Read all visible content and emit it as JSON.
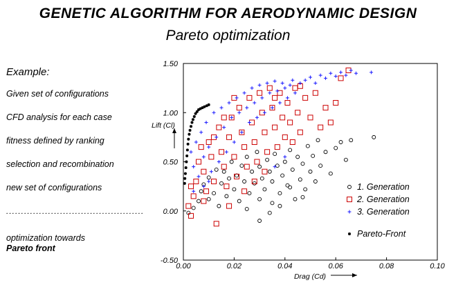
{
  "header": {
    "title": "GENETIC ALGORITHM FOR AERODYNAMIC DESIGN",
    "subtitle": "Pareto optimization"
  },
  "sidebar": {
    "example": "Example:",
    "steps": [
      "Given set of configurations",
      "CFD analysis for each case",
      "fitness defined by ranking",
      "selection and recombination",
      "new set of configurations"
    ],
    "separator": "..............................................",
    "optimization_line1": "optimization towards",
    "optimization_line2": "Pareto front"
  },
  "chart_data": {
    "type": "scatter",
    "xlabel": "Drag (Cd)",
    "ylabel": "Lift (Cl)",
    "xlim": [
      0.0,
      0.1
    ],
    "ylim": [
      -0.5,
      1.5
    ],
    "x_ticks": [
      "0.00",
      "0.02",
      "0.04",
      "0.06",
      "0.08",
      "0.10"
    ],
    "y_ticks": [
      "1.50",
      "1.00",
      "0.50",
      "0.00",
      "-0.50"
    ],
    "series": [
      {
        "name": "1. Generation",
        "marker": "circle",
        "color": "#000000",
        "points": [
          [
            0.002,
            -0.02
          ],
          [
            0.004,
            0.03
          ],
          [
            0.006,
            0.1
          ],
          [
            0.007,
            0.2
          ],
          [
            0.008,
            0.27
          ],
          [
            0.01,
            0.12
          ],
          [
            0.01,
            0.34
          ],
          [
            0.012,
            0.18
          ],
          [
            0.013,
            0.42
          ],
          [
            0.014,
            0.05
          ],
          [
            0.015,
            0.28
          ],
          [
            0.016,
            0.4
          ],
          [
            0.017,
            0.15
          ],
          [
            0.018,
            0.33
          ],
          [
            0.019,
            0.5
          ],
          [
            0.02,
            0.22
          ],
          [
            0.021,
            0.36
          ],
          [
            0.022,
            0.1
          ],
          [
            0.023,
            0.46
          ],
          [
            0.024,
            0.3
          ],
          [
            0.025,
            0.02
          ],
          [
            0.025,
            0.55
          ],
          [
            0.026,
            0.18
          ],
          [
            0.027,
            0.4
          ],
          [
            0.028,
            0.28
          ],
          [
            0.029,
            0.6
          ],
          [
            0.03,
            0.12
          ],
          [
            0.03,
            0.45
          ],
          [
            0.031,
            0.33
          ],
          [
            0.032,
            0.22
          ],
          [
            0.033,
            0.52
          ],
          [
            0.034,
            0.4
          ],
          [
            0.035,
            0.08
          ],
          [
            0.035,
            0.3
          ],
          [
            0.036,
            0.58
          ],
          [
            0.037,
            0.46
          ],
          [
            0.038,
            0.18
          ],
          [
            0.039,
            0.36
          ],
          [
            0.04,
            0.5
          ],
          [
            0.041,
            0.26
          ],
          [
            0.042,
            0.62
          ],
          [
            0.043,
            0.42
          ],
          [
            0.044,
            0.12
          ],
          [
            0.045,
            0.55
          ],
          [
            0.046,
            0.32
          ],
          [
            0.047,
            0.48
          ],
          [
            0.048,
            0.22
          ],
          [
            0.049,
            0.66
          ],
          [
            0.05,
            0.4
          ],
          [
            0.051,
            0.56
          ],
          [
            0.052,
            0.3
          ],
          [
            0.053,
            0.72
          ],
          [
            0.054,
            0.46
          ],
          [
            0.056,
            0.6
          ],
          [
            0.058,
            0.38
          ],
          [
            0.06,
            0.64
          ],
          [
            0.062,
            0.7
          ],
          [
            0.064,
            0.52
          ],
          [
            0.066,
            0.72
          ],
          [
            0.075,
            0.75
          ],
          [
            0.03,
            -0.1
          ],
          [
            0.034,
            -0.02
          ],
          [
            0.038,
            0.05
          ],
          [
            0.042,
            0.24
          ],
          [
            0.047,
            0.14
          ]
        ]
      },
      {
        "name": "2. Generation",
        "marker": "square",
        "color": "#cc0000",
        "points": [
          [
            0.002,
            0.05
          ],
          [
            0.003,
            -0.05
          ],
          [
            0.004,
            0.15
          ],
          [
            0.005,
            0.3
          ],
          [
            0.006,
            0.5
          ],
          [
            0.007,
            0.65
          ],
          [
            0.008,
            0.4
          ],
          [
            0.009,
            0.2
          ],
          [
            0.01,
            0.7
          ],
          [
            0.011,
            0.55
          ],
          [
            0.012,
            0.3
          ],
          [
            0.013,
            -0.13
          ],
          [
            0.014,
            0.85
          ],
          [
            0.015,
            0.6
          ],
          [
            0.016,
            0.45
          ],
          [
            0.017,
            0.25
          ],
          [
            0.018,
            0.75
          ],
          [
            0.019,
            0.95
          ],
          [
            0.02,
            0.55
          ],
          [
            0.021,
            0.35
          ],
          [
            0.022,
            1.05
          ],
          [
            0.023,
            0.8
          ],
          [
            0.024,
            0.65
          ],
          [
            0.025,
            0.45
          ],
          [
            0.026,
            1.15
          ],
          [
            0.027,
            0.9
          ],
          [
            0.028,
            0.7
          ],
          [
            0.029,
            0.5
          ],
          [
            0.03,
            1.2
          ],
          [
            0.031,
            1.0
          ],
          [
            0.032,
            0.8
          ],
          [
            0.033,
            0.6
          ],
          [
            0.034,
            1.25
          ],
          [
            0.035,
            1.05
          ],
          [
            0.036,
            0.85
          ],
          [
            0.037,
            0.65
          ],
          [
            0.038,
            1.2
          ],
          [
            0.039,
            0.95
          ],
          [
            0.04,
            0.75
          ],
          [
            0.041,
            1.1
          ],
          [
            0.042,
            0.9
          ],
          [
            0.043,
            0.7
          ],
          [
            0.044,
            1.25
          ],
          [
            0.045,
            1.0
          ],
          [
            0.046,
            0.8
          ],
          [
            0.048,
            1.15
          ],
          [
            0.05,
            0.95
          ],
          [
            0.052,
            1.2
          ],
          [
            0.054,
            0.85
          ],
          [
            0.056,
            1.05
          ],
          [
            0.058,
            0.9
          ],
          [
            0.06,
            1.1
          ],
          [
            0.062,
            1.35
          ],
          [
            0.065,
            1.43
          ],
          [
            0.003,
            0.25
          ],
          [
            0.008,
            0.1
          ],
          [
            0.012,
            0.75
          ],
          [
            0.016,
            0.95
          ],
          [
            0.02,
            1.15
          ],
          [
            0.028,
            0.3
          ],
          [
            0.032,
            0.4
          ],
          [
            0.018,
            0.05
          ],
          [
            0.024,
            0.2
          ],
          [
            0.036,
            1.15
          ],
          [
            0.046,
            1.27
          ]
        ]
      },
      {
        "name": "3. Generation",
        "marker": "plus",
        "color": "#1a1aff",
        "points": [
          [
            0.003,
            0.6
          ],
          [
            0.004,
            0.45
          ],
          [
            0.005,
            0.7
          ],
          [
            0.006,
            0.35
          ],
          [
            0.007,
            0.8
          ],
          [
            0.008,
            0.55
          ],
          [
            0.009,
            0.9
          ],
          [
            0.01,
            0.65
          ],
          [
            0.011,
            0.4
          ],
          [
            0.012,
            1.0
          ],
          [
            0.013,
            0.75
          ],
          [
            0.014,
            0.5
          ],
          [
            0.015,
            1.05
          ],
          [
            0.016,
            0.85
          ],
          [
            0.017,
            0.6
          ],
          [
            0.018,
            1.1
          ],
          [
            0.019,
            0.95
          ],
          [
            0.02,
            0.7
          ],
          [
            0.021,
            1.15
          ],
          [
            0.022,
            1.0
          ],
          [
            0.023,
            0.8
          ],
          [
            0.024,
            1.2
          ],
          [
            0.025,
            1.05
          ],
          [
            0.026,
            0.9
          ],
          [
            0.027,
            1.25
          ],
          [
            0.028,
            1.1
          ],
          [
            0.029,
            0.95
          ],
          [
            0.03,
            1.28
          ],
          [
            0.031,
            1.15
          ],
          [
            0.032,
            1.0
          ],
          [
            0.033,
            1.3
          ],
          [
            0.034,
            1.2
          ],
          [
            0.035,
            1.05
          ],
          [
            0.036,
            1.32
          ],
          [
            0.037,
            1.22
          ],
          [
            0.038,
            1.1
          ],
          [
            0.039,
            1.3
          ],
          [
            0.04,
            1.25
          ],
          [
            0.041,
            1.15
          ],
          [
            0.042,
            1.28
          ],
          [
            0.043,
            1.33
          ],
          [
            0.044,
            1.2
          ],
          [
            0.046,
            1.3
          ],
          [
            0.048,
            1.33
          ],
          [
            0.05,
            1.36
          ],
          [
            0.052,
            1.3
          ],
          [
            0.054,
            1.38
          ],
          [
            0.056,
            1.35
          ],
          [
            0.058,
            1.4
          ],
          [
            0.06,
            1.37
          ],
          [
            0.062,
            1.41
          ],
          [
            0.064,
            1.38
          ],
          [
            0.066,
            1.43
          ],
          [
            0.068,
            1.4
          ],
          [
            0.074,
            1.41
          ],
          [
            0.04,
            0.55
          ],
          [
            0.036,
            0.45
          ],
          [
            0.008,
            0.25
          ],
          [
            0.01,
            0.3
          ],
          [
            0.004,
            0.2
          ]
        ]
      },
      {
        "name": "Pareto-Front",
        "marker": "star",
        "color": "#000000",
        "points": [
          [
            0.0005,
            0.28
          ],
          [
            0.0006,
            0.33
          ],
          [
            0.0008,
            0.38
          ],
          [
            0.001,
            0.44
          ],
          [
            0.0012,
            0.5
          ],
          [
            0.0014,
            0.56
          ],
          [
            0.0016,
            0.62
          ],
          [
            0.0018,
            0.68
          ],
          [
            0.002,
            0.73
          ],
          [
            0.0023,
            0.78
          ],
          [
            0.0026,
            0.82
          ],
          [
            0.003,
            0.86
          ],
          [
            0.0034,
            0.9
          ],
          [
            0.0038,
            0.93
          ],
          [
            0.0043,
            0.96
          ],
          [
            0.0048,
            0.99
          ],
          [
            0.0054,
            1.01
          ],
          [
            0.006,
            1.03
          ],
          [
            0.0067,
            1.04
          ],
          [
            0.0075,
            1.05
          ],
          [
            0.0083,
            1.06
          ],
          [
            0.0092,
            1.07
          ],
          [
            0.01,
            1.08
          ]
        ]
      }
    ],
    "legend": [
      {
        "label": "1. Generation",
        "marker": "circle",
        "color": "#000000"
      },
      {
        "label": "2. Generation",
        "marker": "square",
        "color": "#cc0000"
      },
      {
        "label": "3. Generation",
        "marker": "plus",
        "color": "#1a1aff"
      },
      {
        "label": "Pareto-Front",
        "marker": "star",
        "color": "#000000"
      }
    ],
    "legend_position": "bottom-right"
  }
}
